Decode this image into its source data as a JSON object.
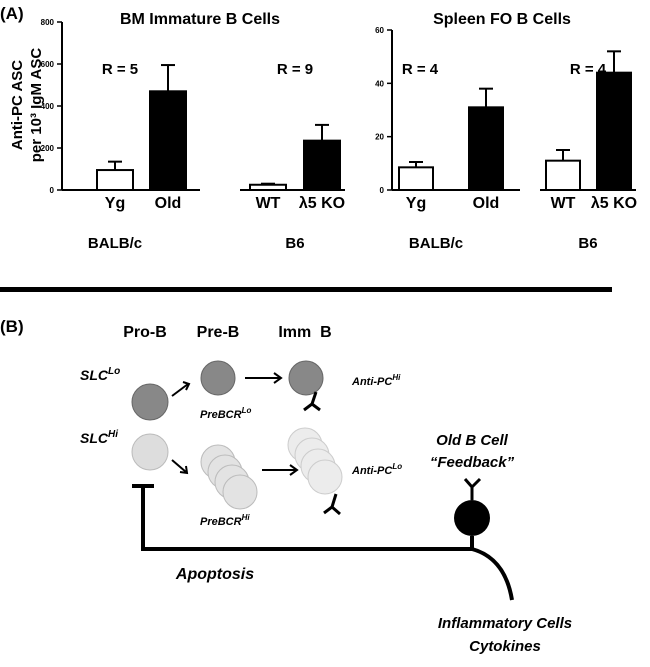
{
  "panel_labels": [
    "(A)",
    "(B)"
  ],
  "chart_data": [
    {
      "type": "bar",
      "title": "BM Immature B Cells",
      "y_label": [
        "Anti-PC ASC",
        "per 10³ IgM ASC"
      ],
      "categories": [
        "Yg",
        "Old",
        "WT",
        "λ5 KO"
      ],
      "values": [
        95,
        470,
        25,
        235
      ],
      "errors": [
        40,
        125,
        5,
        75
      ],
      "colors": [
        "#ffffff",
        "#000000",
        "#ffffff",
        "#000000"
      ],
      "groups": [
        "BALB/c",
        "B6"
      ],
      "annotations": [
        "R = 5",
        "R = 9"
      ],
      "ylim": [
        0,
        800
      ],
      "yticks": [
        0,
        200,
        400,
        600,
        800
      ]
    },
    {
      "type": "bar",
      "title": "Spleen FO B Cells",
      "categories": [
        "Yg",
        "Old",
        "WT",
        "λ5 KO"
      ],
      "values": [
        8.5,
        31,
        11,
        44
      ],
      "errors": [
        2,
        7,
        4,
        8
      ],
      "colors": [
        "#ffffff",
        "#000000",
        "#ffffff",
        "#000000"
      ],
      "groups": [
        "BALB/c",
        "B6"
      ],
      "annotations": [
        "R = 4",
        "R = 4"
      ],
      "ylim": [
        0,
        60
      ],
      "yticks": [
        0,
        20,
        40,
        60
      ]
    }
  ],
  "diagram": {
    "stages": [
      "Pro-B",
      "Pre-B",
      "Imm  B"
    ],
    "slc_lo": {
      "text": "SLC",
      "sup": "Lo"
    },
    "slc_hi": {
      "text": "SLC",
      "sup": "Hi"
    },
    "prebcr_lo": {
      "text": "PreBCR",
      "sup": "Lo"
    },
    "prebcr_hi": {
      "text": "PreBCR",
      "sup": "Hi"
    },
    "antipc_hi": {
      "text": "Anti-PC",
      "sup": "Hi"
    },
    "antipc_lo": {
      "text": "Anti-PC",
      "sup": "Lo"
    },
    "old_b_cell": [
      "Old B Cell",
      "“Feedback”"
    ],
    "apoptosis": "Apoptosis",
    "inflammatory": [
      "Inflammatory Cells",
      "Cytokines"
    ]
  }
}
